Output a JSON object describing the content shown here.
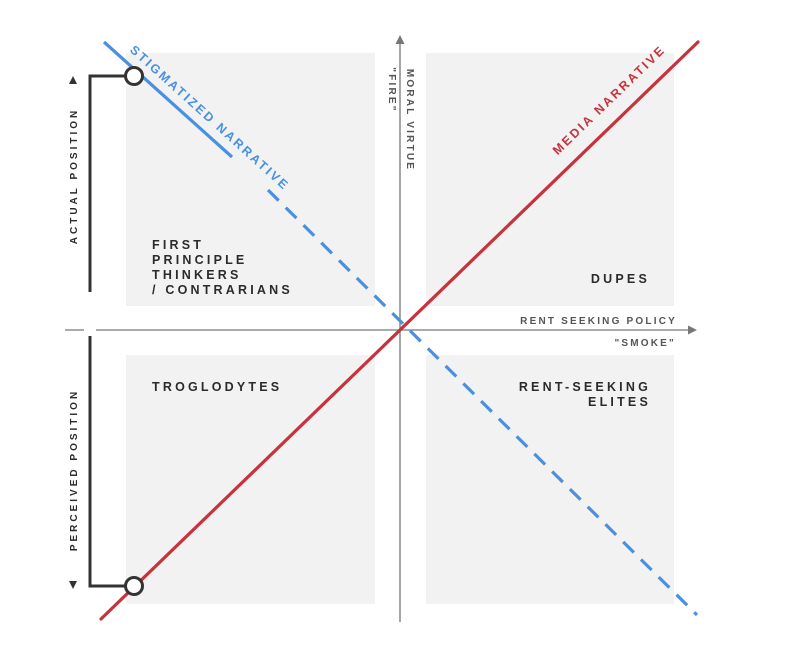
{
  "quadrants": {
    "top_left": [
      "FIRST",
      "PRINCIPLE",
      "THINKERS",
      "/ CONTRARIANS"
    ],
    "top_right": [
      "DUPES"
    ],
    "bottom_left": [
      "TROGLODYTES"
    ],
    "bottom_right": [
      "RENT-SEEKING",
      "ELITES"
    ]
  },
  "axes": {
    "x_label": "RENT SEEKING POLICY",
    "x_sublabel": "\"SMOKE\"",
    "y_label": "MORAL VIRTUE",
    "y_sublabel": "\"FIRE\""
  },
  "lines": {
    "media": "MEDIA NARRATIVE",
    "stigmatized": "STIGMATIZED NARRATIVE"
  },
  "bracket": {
    "actual": "ACTUAL POSITION",
    "perceived": "PERCEIVED POSITION"
  },
  "colors": {
    "media_line": "#c8323c",
    "stigmatized_line": "#4a90e2",
    "quadrant_fill": "#f2f2f2",
    "axis": "#777777",
    "bracket": "#333333"
  }
}
